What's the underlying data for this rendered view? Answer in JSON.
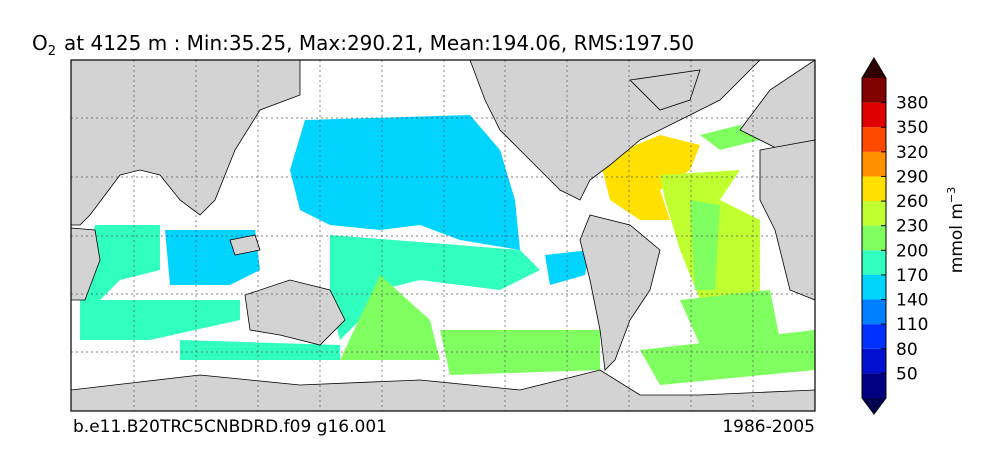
{
  "title": {
    "variable": "O",
    "subscript": "2",
    "text": "at 4125 m : Min:35.25, Max:290.21, Mean:194.06, RMS:197.50"
  },
  "footer": {
    "left": "b.e11.B20TRC5CNBDRD.f09 g16.001",
    "right": "1986-2005"
  },
  "colorbar": {
    "label": "mmol m",
    "exponent": "−3",
    "range": [
      20,
      410
    ],
    "ticks": [
      50,
      80,
      110,
      140,
      170,
      200,
      230,
      260,
      290,
      320,
      350,
      380
    ],
    "colors": [
      "#000080",
      "#0010d0",
      "#0030ff",
      "#0080ff",
      "#00d4ff",
      "#30ffc0",
      "#80ff60",
      "#c0ff30",
      "#ffe000",
      "#ff9000",
      "#ff4800",
      "#e00000",
      "#800000"
    ],
    "under_color": "#000050",
    "over_color": "#300000"
  }
}
